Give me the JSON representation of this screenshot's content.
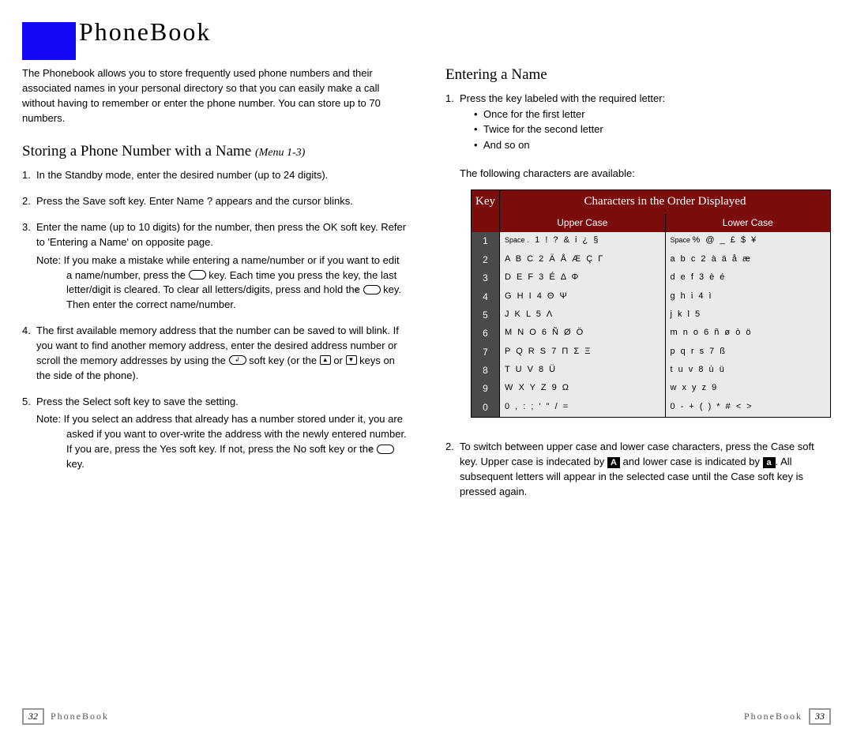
{
  "title": "PhoneBook",
  "intro": "The Phonebook allows you to store frequently used phone numbers and their associated names in your personal directory so that you can easily make a call without having to remember or enter the phone number. You can store up to 70 numbers.",
  "left": {
    "heading": "Storing a Phone Number with a Name",
    "menu_ref": "(Menu 1-3)",
    "steps": {
      "s1": "In the Standby mode, enter the desired number (up to 24 digits).",
      "s2a": "Press the ",
      "s2b": "Save",
      "s2c": " soft key. ",
      "s2d": "Enter Name ?",
      "s2e": " appears and the cursor blinks.",
      "s3a": "Enter the name (up to 10 digits) for the number, then press the ",
      "s3b": "OK",
      "s3c": " soft key. Refer to 'Entering a Name' on opposite page.",
      "note1a": "Note: If you make a mistake while entering a name/number or if you want to edit a name/number, press the ",
      "note1b": " key. Each time you press the key, the last letter/digit is cleared. To clear all letters/digits, press and hold the ",
      "note1c": " key. Then enter the correct name/number.",
      "s4a": "The first available memory address that the number can be saved to will blink. If you want to find another memory address, enter the desired address number or scroll the memory addresses by using the ",
      "s4b": " soft key (or the ",
      "s4c": " or ",
      "s4d": " keys on the side of the phone).",
      "s5a": "Press the ",
      "s5b": "Select",
      "s5c": " soft key to save the setting.",
      "note2a": "Note: If you select an address that already has a number stored under it, you are asked if you want to over-write the address with the newly entered number. If you are, press the Yes soft key. If not, press the No soft key or the ",
      "note2b": " key."
    }
  },
  "right": {
    "heading": "Entering a Name",
    "step1": "Press the key labeled with the required letter:",
    "bullets": {
      "b1": "Once for the first letter",
      "b2": "Twice for the second letter",
      "b3": "And so on"
    },
    "avail": "The following characters are available:",
    "table": {
      "key_header": "Key",
      "chars_header": "Characters in the Order Displayed",
      "upper_header": "Upper Case",
      "lower_header": "Lower Case",
      "rows": [
        {
          "k": "1",
          "u": ". 1 ! ? & i ¿ §",
          "l": "% @ _ £ $ ¥",
          "space_u": true,
          "space_l": true
        },
        {
          "k": "2",
          "u": "A B C 2 Ä Å Æ Ç Γ",
          "l": "a b c 2 à ä å æ"
        },
        {
          "k": "3",
          "u": "D E F 3 É Δ Φ",
          "l": "d e f 3 è é"
        },
        {
          "k": "4",
          "u": "G H I 4 Θ Ψ",
          "l": "g h i 4 ì"
        },
        {
          "k": "5",
          "u": "J K L 5 Λ",
          "l": "j k l 5"
        },
        {
          "k": "6",
          "u": "M N O 6 Ñ Ø Ö",
          "l": "m n o 6 ñ ø ò ö"
        },
        {
          "k": "7",
          "u": "P Q R S 7 Π Σ Ξ",
          "l": "p q r s 7 ß"
        },
        {
          "k": "8",
          "u": "T U V 8 Ü",
          "l": "t u v 8 ù ü"
        },
        {
          "k": "9",
          "u": "W X Y Z 9 Ω",
          "l": "w x y z 9"
        },
        {
          "k": "0",
          "u": "0 , : ; ' \" / =",
          "l": "0 - + ( ) * # < >"
        }
      ]
    },
    "step2a": "To switch between upper case and lower case characters, press the ",
    "step2b": "Case",
    "step2c": " soft key. Upper case is indecated by ",
    "step2d": " and lower case is indicated by ",
    "step2e": ". All subsequent letters will appear in the selected case until the ",
    "step2f": "Case",
    "step2g": " soft key is pressed again.",
    "case_upper": "A",
    "case_lower": "a"
  },
  "footer": {
    "left_num": "32",
    "left_label": "PhoneBook",
    "right_label": "PhoneBook",
    "right_num": "33"
  }
}
